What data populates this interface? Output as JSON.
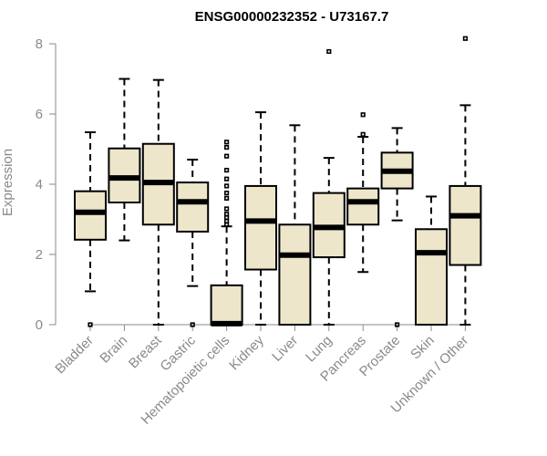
{
  "chart_data": {
    "type": "boxplot",
    "title": "ENSG00000232352 - U73167.7",
    "xlabel": "",
    "ylabel": "Expression",
    "ylim": [
      0,
      8
    ],
    "yticks": [
      0,
      2,
      4,
      6,
      8
    ],
    "box_color": "#ede6cb",
    "categories": [
      "Bladder",
      "Brain",
      "Breast",
      "Gastric",
      "Hematopoietic cells",
      "Kidney",
      "Liver",
      "Lung",
      "Pancreas",
      "Prostate",
      "Skin",
      "Unknown / Other"
    ],
    "boxes": [
      {
        "name": "Bladder",
        "min": 0.95,
        "q1": 2.42,
        "median": 3.2,
        "q3": 3.8,
        "max": 5.48,
        "outliers": [
          0
        ]
      },
      {
        "name": "Brain",
        "min": 2.4,
        "q1": 3.48,
        "median": 4.18,
        "q3": 5.02,
        "max": 7.0,
        "outliers": []
      },
      {
        "name": "Breast",
        "min": 0.0,
        "q1": 2.85,
        "median": 4.05,
        "q3": 5.15,
        "max": 6.97,
        "outliers": []
      },
      {
        "name": "Gastric",
        "min": 1.1,
        "q1": 2.65,
        "median": 3.5,
        "q3": 4.05,
        "max": 4.7,
        "outliers": [
          0
        ]
      },
      {
        "name": "Hematopoietic cells",
        "min": 0.0,
        "q1": 0.0,
        "median": 0.03,
        "q3": 1.12,
        "max": 2.8,
        "outliers": [
          2.85,
          2.95,
          3.05,
          3.15,
          3.3,
          3.6,
          3.75,
          3.95,
          4.15,
          4.4,
          4.8,
          5.05,
          5.2
        ]
      },
      {
        "name": "Kidney",
        "min": 0.0,
        "q1": 1.57,
        "median": 2.95,
        "q3": 3.95,
        "max": 6.05,
        "outliers": []
      },
      {
        "name": "Liver",
        "min": 0.0,
        "q1": 0.0,
        "median": 1.98,
        "q3": 2.85,
        "max": 5.68,
        "outliers": []
      },
      {
        "name": "Lung",
        "min": 0.0,
        "q1": 1.92,
        "median": 2.77,
        "q3": 3.75,
        "max": 4.75,
        "outliers": [
          7.78
        ]
      },
      {
        "name": "Pancreas",
        "min": 1.5,
        "q1": 2.85,
        "median": 3.5,
        "q3": 3.88,
        "max": 5.35,
        "outliers": [
          5.42,
          5.98
        ]
      },
      {
        "name": "Prostate",
        "min": 2.97,
        "q1": 3.88,
        "median": 4.37,
        "q3": 4.9,
        "max": 5.6,
        "outliers": [
          0
        ]
      },
      {
        "name": "Skin",
        "min": 0.0,
        "q1": 0.0,
        "median": 2.05,
        "q3": 2.72,
        "max": 3.65,
        "outliers": []
      },
      {
        "name": "Unknown / Other",
        "min": 0.0,
        "q1": 1.7,
        "median": 3.1,
        "q3": 3.95,
        "max": 6.25,
        "outliers": [
          8.15
        ]
      }
    ]
  }
}
